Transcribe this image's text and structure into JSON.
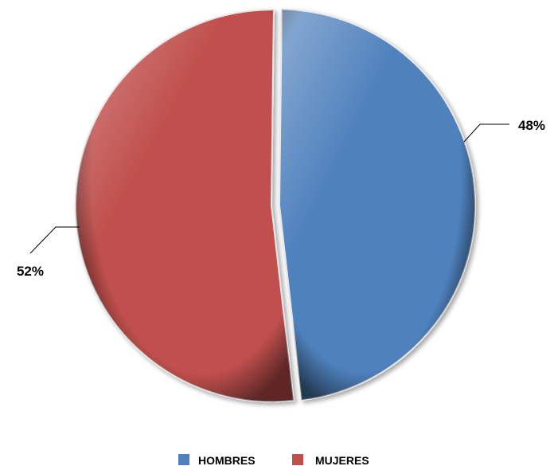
{
  "chart_data": {
    "type": "pie",
    "title": "",
    "slices": [
      {
        "name": "HOMBRES",
        "value": 48,
        "label": "48%",
        "color": "#4f81bd"
      },
      {
        "name": "MUJERES",
        "value": 52,
        "label": "52%",
        "color": "#c0504d"
      }
    ],
    "legend": {
      "placement": "bottom"
    }
  }
}
